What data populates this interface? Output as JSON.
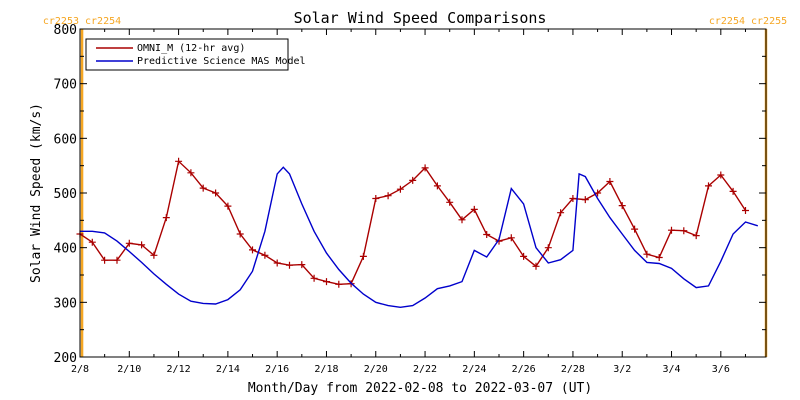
{
  "chart_data": {
    "type": "line",
    "title": "Solar Wind Speed Comparisons",
    "xlabel": "Month/Day from 2022-02-08 to 2022-03-07 (UT)",
    "ylabel": "Solar Wind Speed (km/s)",
    "ylim": [
      200,
      800
    ],
    "xlim": [
      "2022-02-08",
      "2022-03-07T20:00"
    ],
    "y_ticks": [
      "200",
      "300",
      "400",
      "500",
      "600",
      "700",
      "800"
    ],
    "x_ticks": [
      {
        "label": "2/8",
        "date": "2022-02-08"
      },
      {
        "label": "2/10",
        "date": "2022-02-10"
      },
      {
        "label": "2/12",
        "date": "2022-02-12"
      },
      {
        "label": "2/14",
        "date": "2022-02-14"
      },
      {
        "label": "2/16",
        "date": "2022-02-16"
      },
      {
        "label": "2/18",
        "date": "2022-02-18"
      },
      {
        "label": "2/20",
        "date": "2022-02-20"
      },
      {
        "label": "2/22",
        "date": "2022-02-22"
      },
      {
        "label": "2/24",
        "date": "2022-02-24"
      },
      {
        "label": "2/26",
        "date": "2022-02-26"
      },
      {
        "label": "2/28",
        "date": "2022-02-28"
      },
      {
        "label": "3/2",
        "date": "2022-03-02"
      },
      {
        "label": "3/4",
        "date": "2022-03-04"
      },
      {
        "label": "3/6",
        "date": "2022-03-06"
      }
    ],
    "carrington_labels": {
      "left": "cr2253 cr2254",
      "right": "cr2254 cr2255"
    },
    "carrington_boundaries": [
      "2022-02-08T02:00",
      "2022-03-07T20:00"
    ],
    "legend_position": "top-left",
    "grid": false,
    "series": [
      {
        "name": "OMNI_M (12-hr avg)",
        "color": "#aa0000",
        "marker": "plus",
        "points": [
          [
            "2022-02-08T00:00",
            425
          ],
          [
            "2022-02-08T12:00",
            410
          ],
          [
            "2022-02-09T00:00",
            377
          ],
          [
            "2022-02-09T12:00",
            377
          ],
          [
            "2022-02-10T00:00",
            408
          ],
          [
            "2022-02-10T12:00",
            405
          ],
          [
            "2022-02-11T00:00",
            386
          ],
          [
            "2022-02-11T12:00",
            455
          ],
          [
            "2022-02-12T00:00",
            558
          ],
          [
            "2022-02-12T12:00",
            537
          ],
          [
            "2022-02-13T00:00",
            509
          ],
          [
            "2022-02-13T12:00",
            500
          ],
          [
            "2022-02-14T00:00",
            476
          ],
          [
            "2022-02-14T12:00",
            425
          ],
          [
            "2022-02-15T00:00",
            396
          ],
          [
            "2022-02-15T12:00",
            386
          ],
          [
            "2022-02-16T00:00",
            372
          ],
          [
            "2022-02-16T12:00",
            368
          ],
          [
            "2022-02-17T00:00",
            369
          ],
          [
            "2022-02-17T12:00",
            344
          ],
          [
            "2022-02-18T00:00",
            338
          ],
          [
            "2022-02-18T12:00",
            333
          ],
          [
            "2022-02-19T00:00",
            334
          ],
          [
            "2022-02-19T12:00",
            384
          ],
          [
            "2022-02-20T00:00",
            490
          ],
          [
            "2022-02-20T12:00",
            495
          ],
          [
            "2022-02-21T00:00",
            507
          ],
          [
            "2022-02-21T12:00",
            523
          ],
          [
            "2022-02-22T00:00",
            546
          ],
          [
            "2022-02-22T12:00",
            513
          ],
          [
            "2022-02-23T00:00",
            483
          ],
          [
            "2022-02-23T12:00",
            451
          ],
          [
            "2022-02-24T00:00",
            470
          ],
          [
            "2022-02-24T12:00",
            424
          ],
          [
            "2022-02-25T00:00",
            412
          ],
          [
            "2022-02-25T12:00",
            418
          ],
          [
            "2022-02-26T00:00",
            384
          ],
          [
            "2022-02-26T12:00",
            366
          ],
          [
            "2022-02-27T00:00",
            400
          ],
          [
            "2022-02-27T12:00",
            464
          ],
          [
            "2022-02-28T00:00",
            490
          ],
          [
            "2022-02-28T12:00",
            488
          ],
          [
            "2022-03-01T00:00",
            500
          ],
          [
            "2022-03-01T12:00",
            521
          ],
          [
            "2022-03-02T00:00",
            477
          ],
          [
            "2022-03-02T12:00",
            434
          ],
          [
            "2022-03-03T00:00",
            388
          ],
          [
            "2022-03-03T12:00",
            382
          ],
          [
            "2022-03-04T00:00",
            432
          ],
          [
            "2022-03-04T12:00",
            431
          ],
          [
            "2022-03-05T00:00",
            422
          ],
          [
            "2022-03-05T12:00",
            513
          ],
          [
            "2022-03-06T00:00",
            533
          ],
          [
            "2022-03-06T12:00",
            503
          ],
          [
            "2022-03-07T00:00",
            468
          ]
        ]
      },
      {
        "name": "Predictive Science MAS Model",
        "color": "#0000cc",
        "marker": "none",
        "points": [
          [
            "2022-02-08T00:00",
            430
          ],
          [
            "2022-02-08T12:00",
            430
          ],
          [
            "2022-02-09T00:00",
            427
          ],
          [
            "2022-02-09T12:00",
            412
          ],
          [
            "2022-02-10T00:00",
            393
          ],
          [
            "2022-02-10T12:00",
            373
          ],
          [
            "2022-02-11T00:00",
            352
          ],
          [
            "2022-02-11T12:00",
            333
          ],
          [
            "2022-02-12T00:00",
            315
          ],
          [
            "2022-02-12T12:00",
            302
          ],
          [
            "2022-02-13T00:00",
            298
          ],
          [
            "2022-02-13T12:00",
            297
          ],
          [
            "2022-02-14T00:00",
            305
          ],
          [
            "2022-02-14T12:00",
            323
          ],
          [
            "2022-02-15T00:00",
            357
          ],
          [
            "2022-02-15T12:00",
            430
          ],
          [
            "2022-02-16T00:00",
            535
          ],
          [
            "2022-02-16T06:00",
            547
          ],
          [
            "2022-02-16T12:00",
            535
          ],
          [
            "2022-02-17T00:00",
            480
          ],
          [
            "2022-02-17T12:00",
            430
          ],
          [
            "2022-02-18T00:00",
            390
          ],
          [
            "2022-02-18T12:00",
            360
          ],
          [
            "2022-02-19T00:00",
            335
          ],
          [
            "2022-02-19T12:00",
            315
          ],
          [
            "2022-02-20T00:00",
            300
          ],
          [
            "2022-02-20T12:00",
            294
          ],
          [
            "2022-02-21T00:00",
            291
          ],
          [
            "2022-02-21T12:00",
            294
          ],
          [
            "2022-02-22T00:00",
            308
          ],
          [
            "2022-02-22T12:00",
            325
          ],
          [
            "2022-02-23T00:00",
            330
          ],
          [
            "2022-02-23T12:00",
            338
          ],
          [
            "2022-02-24T00:00",
            395
          ],
          [
            "2022-02-24T12:00",
            383
          ],
          [
            "2022-02-25T00:00",
            415
          ],
          [
            "2022-02-25T12:00",
            508
          ],
          [
            "2022-02-26T00:00",
            480
          ],
          [
            "2022-02-26T12:00",
            400
          ],
          [
            "2022-02-27T00:00",
            372
          ],
          [
            "2022-02-27T12:00",
            378
          ],
          [
            "2022-02-28T00:00",
            395
          ],
          [
            "2022-02-28T06:00",
            535
          ],
          [
            "2022-02-28T12:00",
            530
          ],
          [
            "2022-03-01T00:00",
            490
          ],
          [
            "2022-03-01T12:00",
            455
          ],
          [
            "2022-03-02T00:00",
            425
          ],
          [
            "2022-03-02T12:00",
            395
          ],
          [
            "2022-03-03T00:00",
            373
          ],
          [
            "2022-03-03T12:00",
            371
          ],
          [
            "2022-03-04T00:00",
            362
          ],
          [
            "2022-03-04T12:00",
            343
          ],
          [
            "2022-03-05T00:00",
            327
          ],
          [
            "2022-03-05T12:00",
            330
          ],
          [
            "2022-03-06T00:00",
            375
          ],
          [
            "2022-03-06T12:00",
            425
          ],
          [
            "2022-03-07T00:00",
            447
          ],
          [
            "2022-03-07T12:00",
            440
          ]
        ]
      }
    ],
    "colors": {
      "axes": "#000000",
      "carrington": "#f5a623"
    }
  }
}
